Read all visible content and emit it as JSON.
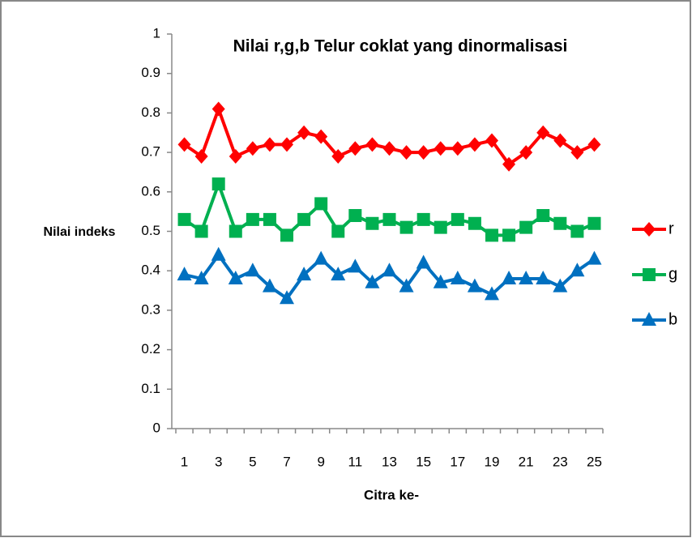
{
  "chart_data": {
    "type": "line",
    "title": "Nilai r,g,b Telur coklat yang dinormalisasi",
    "y_label": "Nilai indeks",
    "x_label": "Citra ke-",
    "categories": [
      1,
      null,
      3,
      null,
      5,
      null,
      7,
      null,
      9,
      null,
      11,
      null,
      13,
      null,
      15,
      null,
      17,
      null,
      19,
      null,
      21,
      null,
      23,
      null,
      25
    ],
    "series": [
      {
        "name": "r",
        "color": "#ff0000",
        "marker": "diamond",
        "values": [
          0.72,
          0.69,
          0.81,
          0.69,
          0.71,
          0.72,
          0.72,
          0.75,
          0.74,
          0.69,
          0.71,
          0.72,
          0.71,
          0.7,
          0.7,
          0.71,
          0.71,
          0.72,
          0.73,
          0.67,
          0.7,
          0.75,
          0.73,
          0.7,
          0.72
        ]
      },
      {
        "name": "g",
        "color": "#00b050",
        "marker": "square",
        "values": [
          0.53,
          0.5,
          0.62,
          0.5,
          0.53,
          0.53,
          0.49,
          0.53,
          0.57,
          0.5,
          0.54,
          0.52,
          0.53,
          0.51,
          0.53,
          0.51,
          0.53,
          0.52,
          0.49,
          0.49,
          0.51,
          0.54,
          0.52,
          0.5,
          0.52
        ]
      },
      {
        "name": "b",
        "color": "#0070c0",
        "marker": "triangle",
        "values": [
          0.39,
          0.38,
          0.44,
          0.38,
          0.4,
          0.36,
          0.33,
          0.39,
          0.43,
          0.39,
          0.41,
          0.37,
          0.4,
          0.36,
          0.42,
          0.37,
          0.38,
          0.36,
          0.34,
          0.38,
          0.38,
          0.38,
          0.36,
          0.4,
          0.43
        ]
      }
    ],
    "ylim": [
      0,
      1
    ],
    "yticks": [
      0,
      0.1,
      0.2,
      0.3,
      0.4,
      0.5,
      0.6,
      0.7,
      0.8,
      0.9,
      1
    ],
    "grid": false,
    "legend": "right"
  }
}
